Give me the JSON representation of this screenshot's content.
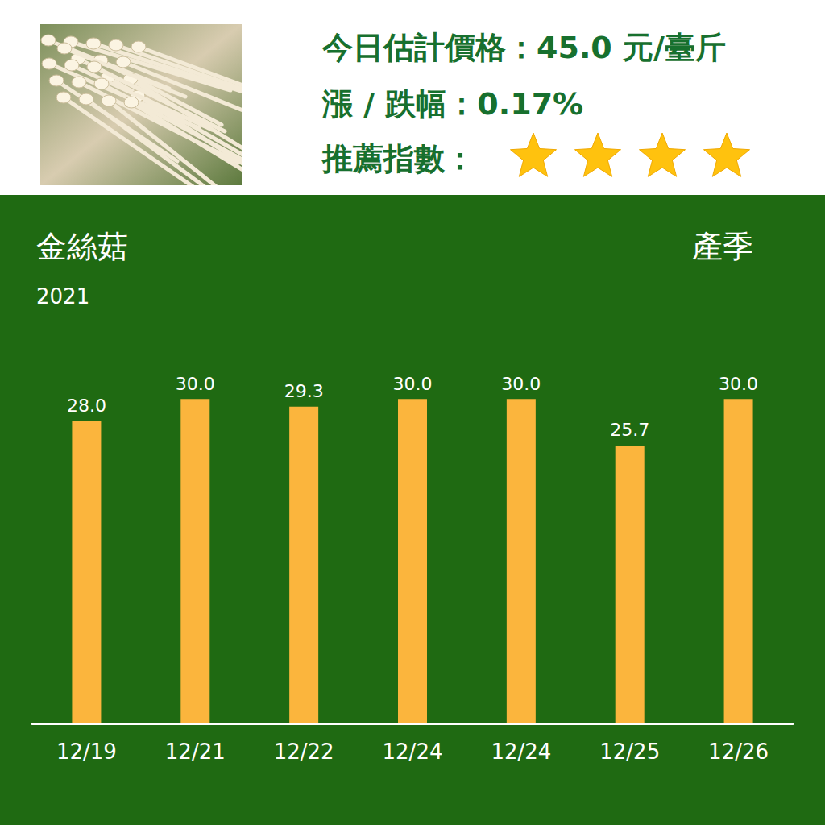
{
  "header": {
    "price_text": "今日估計價格：45.0 元/臺斤",
    "change_text": "漲 / 跌幅：0.17%",
    "rating_label": "推薦指數：",
    "rating": 4
  },
  "chart_data": {
    "type": "bar",
    "title": "金絲菇",
    "subtitle": "2021",
    "annotation": "產季",
    "categories": [
      "12/19",
      "12/21",
      "12/22",
      "12/24",
      "12/24",
      "12/25",
      "12/26"
    ],
    "values": [
      28.0,
      30.0,
      29.3,
      30.0,
      30.0,
      25.7,
      30.0
    ],
    "value_labels": [
      "28.0",
      "30.0",
      "29.3",
      "30.0",
      "30.0",
      "25.7",
      "30.0"
    ],
    "color": "#fbb53d",
    "ylim": [
      0,
      40
    ],
    "yticks": [
      0,
      40
    ],
    "grid": false,
    "data_labels": true,
    "tick_labels": "x"
  }
}
